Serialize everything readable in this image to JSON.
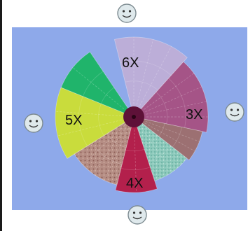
{
  "wheel": {
    "labels": {
      "six": "6X",
      "five": "5X",
      "three": "3X",
      "four": "4X"
    },
    "colors": {
      "panel": "#8ea9ea",
      "hub": "#5e1138",
      "sector_6x": "#bcaed8",
      "sector_3x": "#a55487",
      "sector_brown": "#9c7072",
      "sector_teal": "#8cc9bb",
      "sector_4x": "#b3204c",
      "sector_speckle": "#b58d84",
      "sector_5x": "#c9dc3c",
      "sector_green": "#20b46b"
    }
  },
  "icons": {
    "top": "smiley-icon",
    "left": "smiley-icon",
    "right": "smiley-icon",
    "bottom": "smiley-icon"
  }
}
